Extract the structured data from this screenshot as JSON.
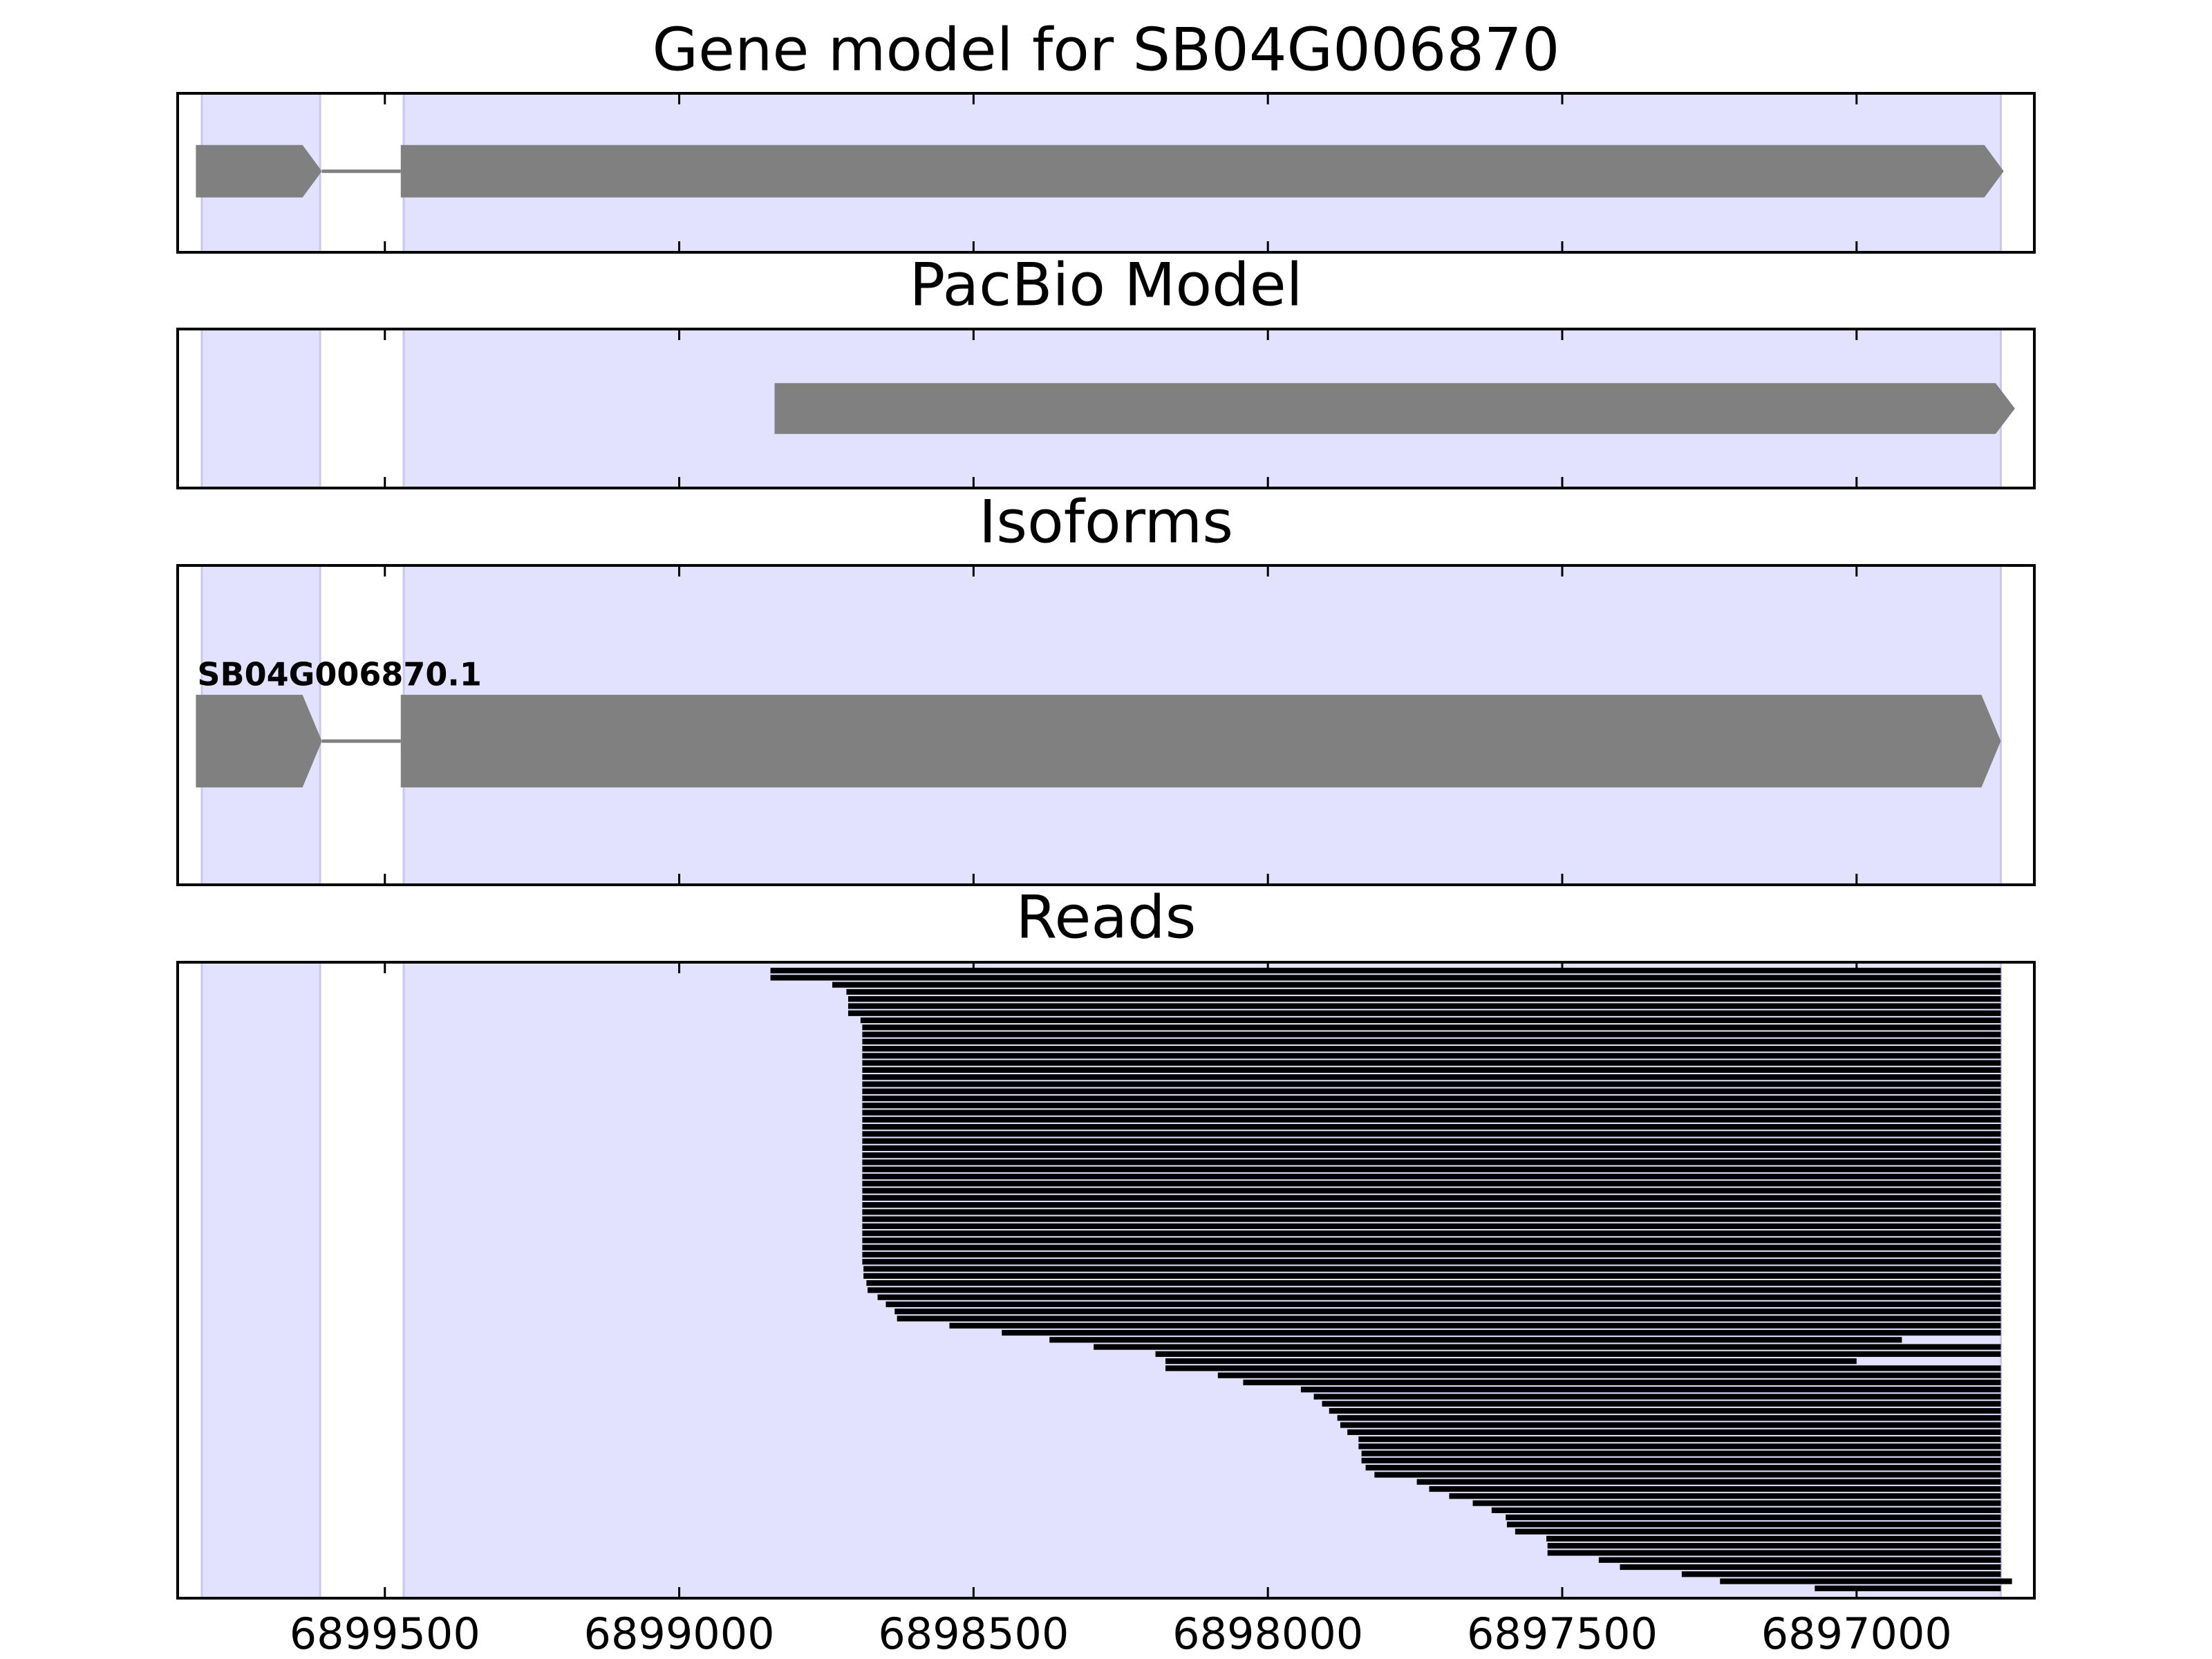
{
  "chart_data": [
    {
      "type": "gene",
      "title": "Gene model for SB04G006870",
      "xlim": [
        6899852,
        6896698
      ],
      "highlights": [
        [
          6899811,
          6899610
        ],
        [
          6899468,
          6896755
        ]
      ],
      "exons": [
        [
          6899821,
          6899607
        ],
        [
          6899473,
          6896750
        ]
      ],
      "color": "#808080",
      "highlight_color": "#e2e2ff"
    },
    {
      "type": "gene",
      "title": "PacBio Model",
      "xlim": [
        6899852,
        6896698
      ],
      "highlights": [
        [
          6899811,
          6899610
        ],
        [
          6899468,
          6896755
        ]
      ],
      "exons": [
        [
          6898838,
          6896731
        ]
      ],
      "color": "#808080",
      "highlight_color": "#e2e2ff"
    },
    {
      "type": "gene",
      "title": "Isoforms",
      "label": "SB04G006870.1",
      "xlim": [
        6899852,
        6896698
      ],
      "highlights": [
        [
          6899811,
          6899610
        ],
        [
          6899468,
          6896755
        ]
      ],
      "exons": [
        [
          6899821,
          6899607
        ],
        [
          6899473,
          6896755
        ]
      ],
      "color": "#808080",
      "highlight_color": "#e2e2ff"
    },
    {
      "type": "reads",
      "title": "Reads",
      "xlim": [
        6899852,
        6896698
      ],
      "xticks": [
        6899500,
        6899000,
        6898500,
        6898000,
        6897500,
        6897000
      ],
      "highlights": [
        [
          6899811,
          6899610
        ],
        [
          6899468,
          6896755
        ]
      ],
      "color": "#000000",
      "highlight_color": "#e2e2ff",
      "starts": [
        6898845,
        6898845,
        6898740,
        6898716,
        6898713,
        6898713,
        6898713,
        6898692,
        6898689,
        6898689,
        6898689,
        6898689,
        6898689,
        6898689,
        6898689,
        6898689,
        6898689,
        6898689,
        6898689,
        6898689,
        6898689,
        6898689,
        6898689,
        6898689,
        6898689,
        6898689,
        6898689,
        6898689,
        6898689,
        6898689,
        6898689,
        6898689,
        6898689,
        6898689,
        6898689,
        6898689,
        6898689,
        6898689,
        6898689,
        6898689,
        6898689,
        6898689,
        6898687,
        6898687,
        6898682,
        6898680,
        6898663,
        6898649,
        6898634,
        6898630,
        6898541,
        6898452,
        6898371,
        6898296,
        6898191,
        6898174,
        6898174,
        6898085,
        6898042,
        6897944,
        6897922,
        6897908,
        6897896,
        6897882,
        6897877,
        6897865,
        6897846,
        6897846,
        6897841,
        6897841,
        6897834,
        6897819,
        6897747,
        6897726,
        6897692,
        6897652,
        6897620,
        6897596,
        6897594,
        6897580,
        6897527,
        6897525,
        6897525,
        6897438,
        6897402,
        6897297,
        6897232,
        6897071
      ],
      "ends": [
        6896755,
        6896755,
        6896755,
        6896755,
        6896755,
        6896755,
        6896755,
        6896755,
        6896755,
        6896755,
        6896755,
        6896755,
        6896755,
        6896755,
        6896755,
        6896755,
        6896755,
        6896755,
        6896755,
        6896755,
        6896755,
        6896755,
        6896755,
        6896755,
        6896755,
        6896755,
        6896755,
        6896755,
        6896755,
        6896755,
        6896755,
        6896755,
        6896755,
        6896755,
        6896755,
        6896755,
        6896755,
        6896755,
        6896755,
        6896755,
        6896755,
        6896755,
        6896755,
        6896755,
        6896755,
        6896755,
        6896755,
        6896755,
        6896755,
        6896755,
        6896755,
        6896755,
        6896923,
        6896755,
        6896755,
        6897000,
        6896755,
        6896755,
        6896755,
        6896755,
        6896755,
        6896755,
        6896755,
        6896755,
        6896755,
        6896755,
        6896755,
        6896755,
        6896755,
        6896755,
        6896755,
        6896755,
        6896755,
        6896755,
        6896755,
        6896755,
        6896755,
        6896755,
        6896755,
        6896755,
        6896755,
        6896755,
        6896755,
        6896755,
        6896755,
        6896755,
        6896736,
        6896755
      ]
    }
  ]
}
